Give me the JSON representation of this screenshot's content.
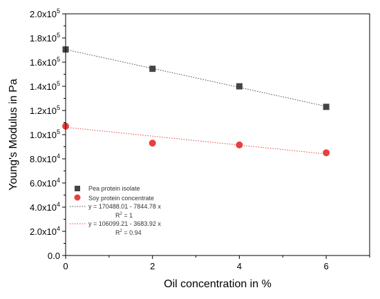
{
  "chart_data": {
    "type": "scatter",
    "xlabel": "Oil concentration in %",
    "ylabel": "Young's Modulus in Pa",
    "xlim": [
      0,
      7
    ],
    "ylim": [
      0,
      200000
    ],
    "x_ticks": [
      {
        "value": 0,
        "label": "0"
      },
      {
        "value": 2,
        "label": "2"
      },
      {
        "value": 4,
        "label": "4"
      },
      {
        "value": 6,
        "label": "6"
      }
    ],
    "y_ticks": [
      {
        "value": 0,
        "mant": "0.0",
        "exp": ""
      },
      {
        "value": 20000,
        "mant": "2.0x10",
        "exp": "4"
      },
      {
        "value": 40000,
        "mant": "4.0x10",
        "exp": "4"
      },
      {
        "value": 60000,
        "mant": "6.0x10",
        "exp": "4"
      },
      {
        "value": 80000,
        "mant": "8.0x10",
        "exp": "4"
      },
      {
        "value": 100000,
        "mant": "1.0x10",
        "exp": "5"
      },
      {
        "value": 120000,
        "mant": "1.2x10",
        "exp": "5"
      },
      {
        "value": 140000,
        "mant": "1.4x10",
        "exp": "5"
      },
      {
        "value": 160000,
        "mant": "1.6x10",
        "exp": "5"
      },
      {
        "value": 180000,
        "mant": "1.8x10",
        "exp": "5"
      },
      {
        "value": 200000,
        "mant": "2.0x10",
        "exp": "5"
      }
    ],
    "series": [
      {
        "name": "Pea protein isolate",
        "marker": "square",
        "color": "#454545",
        "x": [
          0,
          2,
          4,
          6
        ],
        "y": [
          170500,
          154500,
          140000,
          123000
        ]
      },
      {
        "name": "Soy protein concentrate",
        "marker": "circle",
        "color": "#e8403d",
        "x": [
          0,
          2,
          4,
          6
        ],
        "y": [
          107000,
          93000,
          91500,
          85000
        ]
      }
    ],
    "fits": [
      {
        "equation": "y = 170488.01 - 7844.78 x",
        "r2_prefix": "R",
        "r2_exp": "2",
        "r2_suffix": " = 1",
        "intercept": 170488.01,
        "slope": -7844.78,
        "color": "#444444"
      },
      {
        "equation": "y = 106099.21 - 3683.92 x",
        "r2_prefix": "R",
        "r2_exp": "2",
        "r2_suffix": " = 0.94",
        "intercept": 106099.21,
        "slope": -3683.92,
        "color": "#e8403d"
      }
    ],
    "legend_position": "bottom-left"
  }
}
